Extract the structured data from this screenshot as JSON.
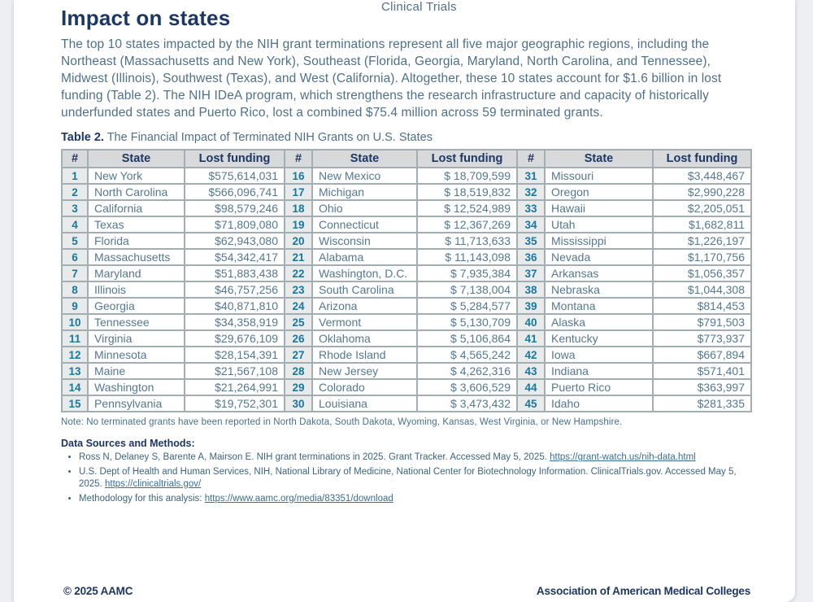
{
  "page": {
    "running_head": "Clinical Trials",
    "title": "Impact on states",
    "intro": "The top 10 states impacted by the NIH grant terminations represent all five major geographic regions, including the Northeast (Massachusetts and New York), Southeast (Florida, Georgia, Maryland, North Carolina, and Tennessee), Midwest (Illinois), Southwest (Texas), and West (California). Altogether, these 10 states account for $1.6 billion in lost funding (Table 2). The NIH IDeA program, which strengthens the research infrastructure and capacity of historically underfunded states and Puerto Rico, lost a combined $75.4 million across 59 terminated grants."
  },
  "table": {
    "caption_label": "Table 2.",
    "caption_text": "The Financial Impact of Terminated NIH Grants on U.S. States",
    "headers": [
      "#",
      "State",
      "Lost funding"
    ],
    "groups": [
      {
        "rows": [
          [
            "1",
            "New York",
            "$575,614,031"
          ],
          [
            "2",
            "North Carolina",
            "$566,096,741"
          ],
          [
            "3",
            "California",
            "$98,579,246"
          ],
          [
            "4",
            "Texas",
            "$71,809,080"
          ],
          [
            "5",
            "Florida",
            "$62,943,080"
          ],
          [
            "6",
            "Massachusetts",
            "$54,342,417"
          ],
          [
            "7",
            "Maryland",
            "$51,883,438"
          ],
          [
            "8",
            "Illinois",
            "$46,757,256"
          ],
          [
            "9",
            "Georgia",
            "$40,871,810"
          ],
          [
            "10",
            "Tennessee",
            "$34,358,919"
          ],
          [
            "11",
            "Virginia",
            "$29,676,109"
          ],
          [
            "12",
            "Minnesota",
            "$28,154,391"
          ],
          [
            "13",
            "Maine",
            "$21,567,108"
          ],
          [
            "14",
            "Washington",
            "$21,264,991"
          ],
          [
            "15",
            "Pennsylvania",
            "$19,752,301"
          ]
        ]
      },
      {
        "rows": [
          [
            "16",
            "New Mexico",
            "$ 18,709,599"
          ],
          [
            "17",
            "Michigan",
            "$ 18,519,832"
          ],
          [
            "18",
            "Ohio",
            "$ 12,524,989"
          ],
          [
            "19",
            "Connecticut",
            "$ 12,367,269"
          ],
          [
            "20",
            "Wisconsin",
            "$ 11,713,633"
          ],
          [
            "21",
            "Alabama",
            "$ 11,143,098"
          ],
          [
            "22",
            "Washington, D.C.",
            "$ 7,935,384"
          ],
          [
            "23",
            "South Carolina",
            "$ 7,138,004"
          ],
          [
            "24",
            "Arizona",
            "$ 5,284,577"
          ],
          [
            "25",
            "Vermont",
            "$ 5,130,709"
          ],
          [
            "26",
            "Oklahoma",
            "$ 5,106,864"
          ],
          [
            "27",
            "Rhode Island",
            "$ 4,565,242"
          ],
          [
            "28",
            "New Jersey",
            "$ 4,262,316"
          ],
          [
            "29",
            "Colorado",
            "$ 3,606,529"
          ],
          [
            "30",
            "Louisiana",
            "$ 3,473,432"
          ]
        ]
      },
      {
        "rows": [
          [
            "31",
            "Missouri",
            "$3,448,467"
          ],
          [
            "32",
            "Oregon",
            "$2,990,228"
          ],
          [
            "33",
            "Hawaii",
            "$2,205,051"
          ],
          [
            "34",
            "Utah",
            "$1,682,811"
          ],
          [
            "35",
            "Mississippi",
            "$1,226,197"
          ],
          [
            "36",
            "Nevada",
            "$1,170,756"
          ],
          [
            "37",
            "Arkansas",
            "$1,056,357"
          ],
          [
            "38",
            "Nebraska",
            "$1,044,308"
          ],
          [
            "39",
            "Montana",
            "$814,453"
          ],
          [
            "40",
            "Alaska",
            "$791,503"
          ],
          [
            "41",
            "Kentucky",
            "$773,937"
          ],
          [
            "42",
            "Iowa",
            "$667,894"
          ],
          [
            "43",
            "Indiana",
            "$571,401"
          ],
          [
            "44",
            "Puerto Rico",
            "$363,997"
          ],
          [
            "45",
            "Idaho",
            "$281,335"
          ]
        ]
      }
    ]
  },
  "note": "Note: No terminated grants have been reported in North Dakota, South Dakota, Wyoming, Kansas, West Virginia, or New Hampshire.",
  "sources": {
    "heading": "Data Sources and Methods:",
    "items": [
      {
        "text": "Ross N, Delaney S, Barente A, Mairson E. NIH grant terminations in 2025. Grant Tracker. Accessed May 5, 2025. ",
        "link": "https://grant-watch.us/nih-data.html"
      },
      {
        "text": "U.S. Dept of Health and Human Services, NIH, National Library of Medicine, National Center for Biotechnology Information. ClinicalTrials.gov. Accessed May 5, 2025. ",
        "link": "https://clinicaltrials.gov/"
      },
      {
        "text": "Methodology for this analysis: ",
        "link": "https://www.aamc.org/media/83351/download"
      }
    ]
  },
  "footer": {
    "left": "© 2025 AAMC",
    "right": "Association of American Medical Colleges"
  },
  "colors": {
    "navy": "#1d3765",
    "steel_blue_text": "#4f7089",
    "rank_teal": "#1878a0",
    "table_border": "#a2adb4",
    "header_bg": "#d8d9da",
    "rank_bg": "#e9eaea",
    "canvas_bg": "#edeff3"
  }
}
